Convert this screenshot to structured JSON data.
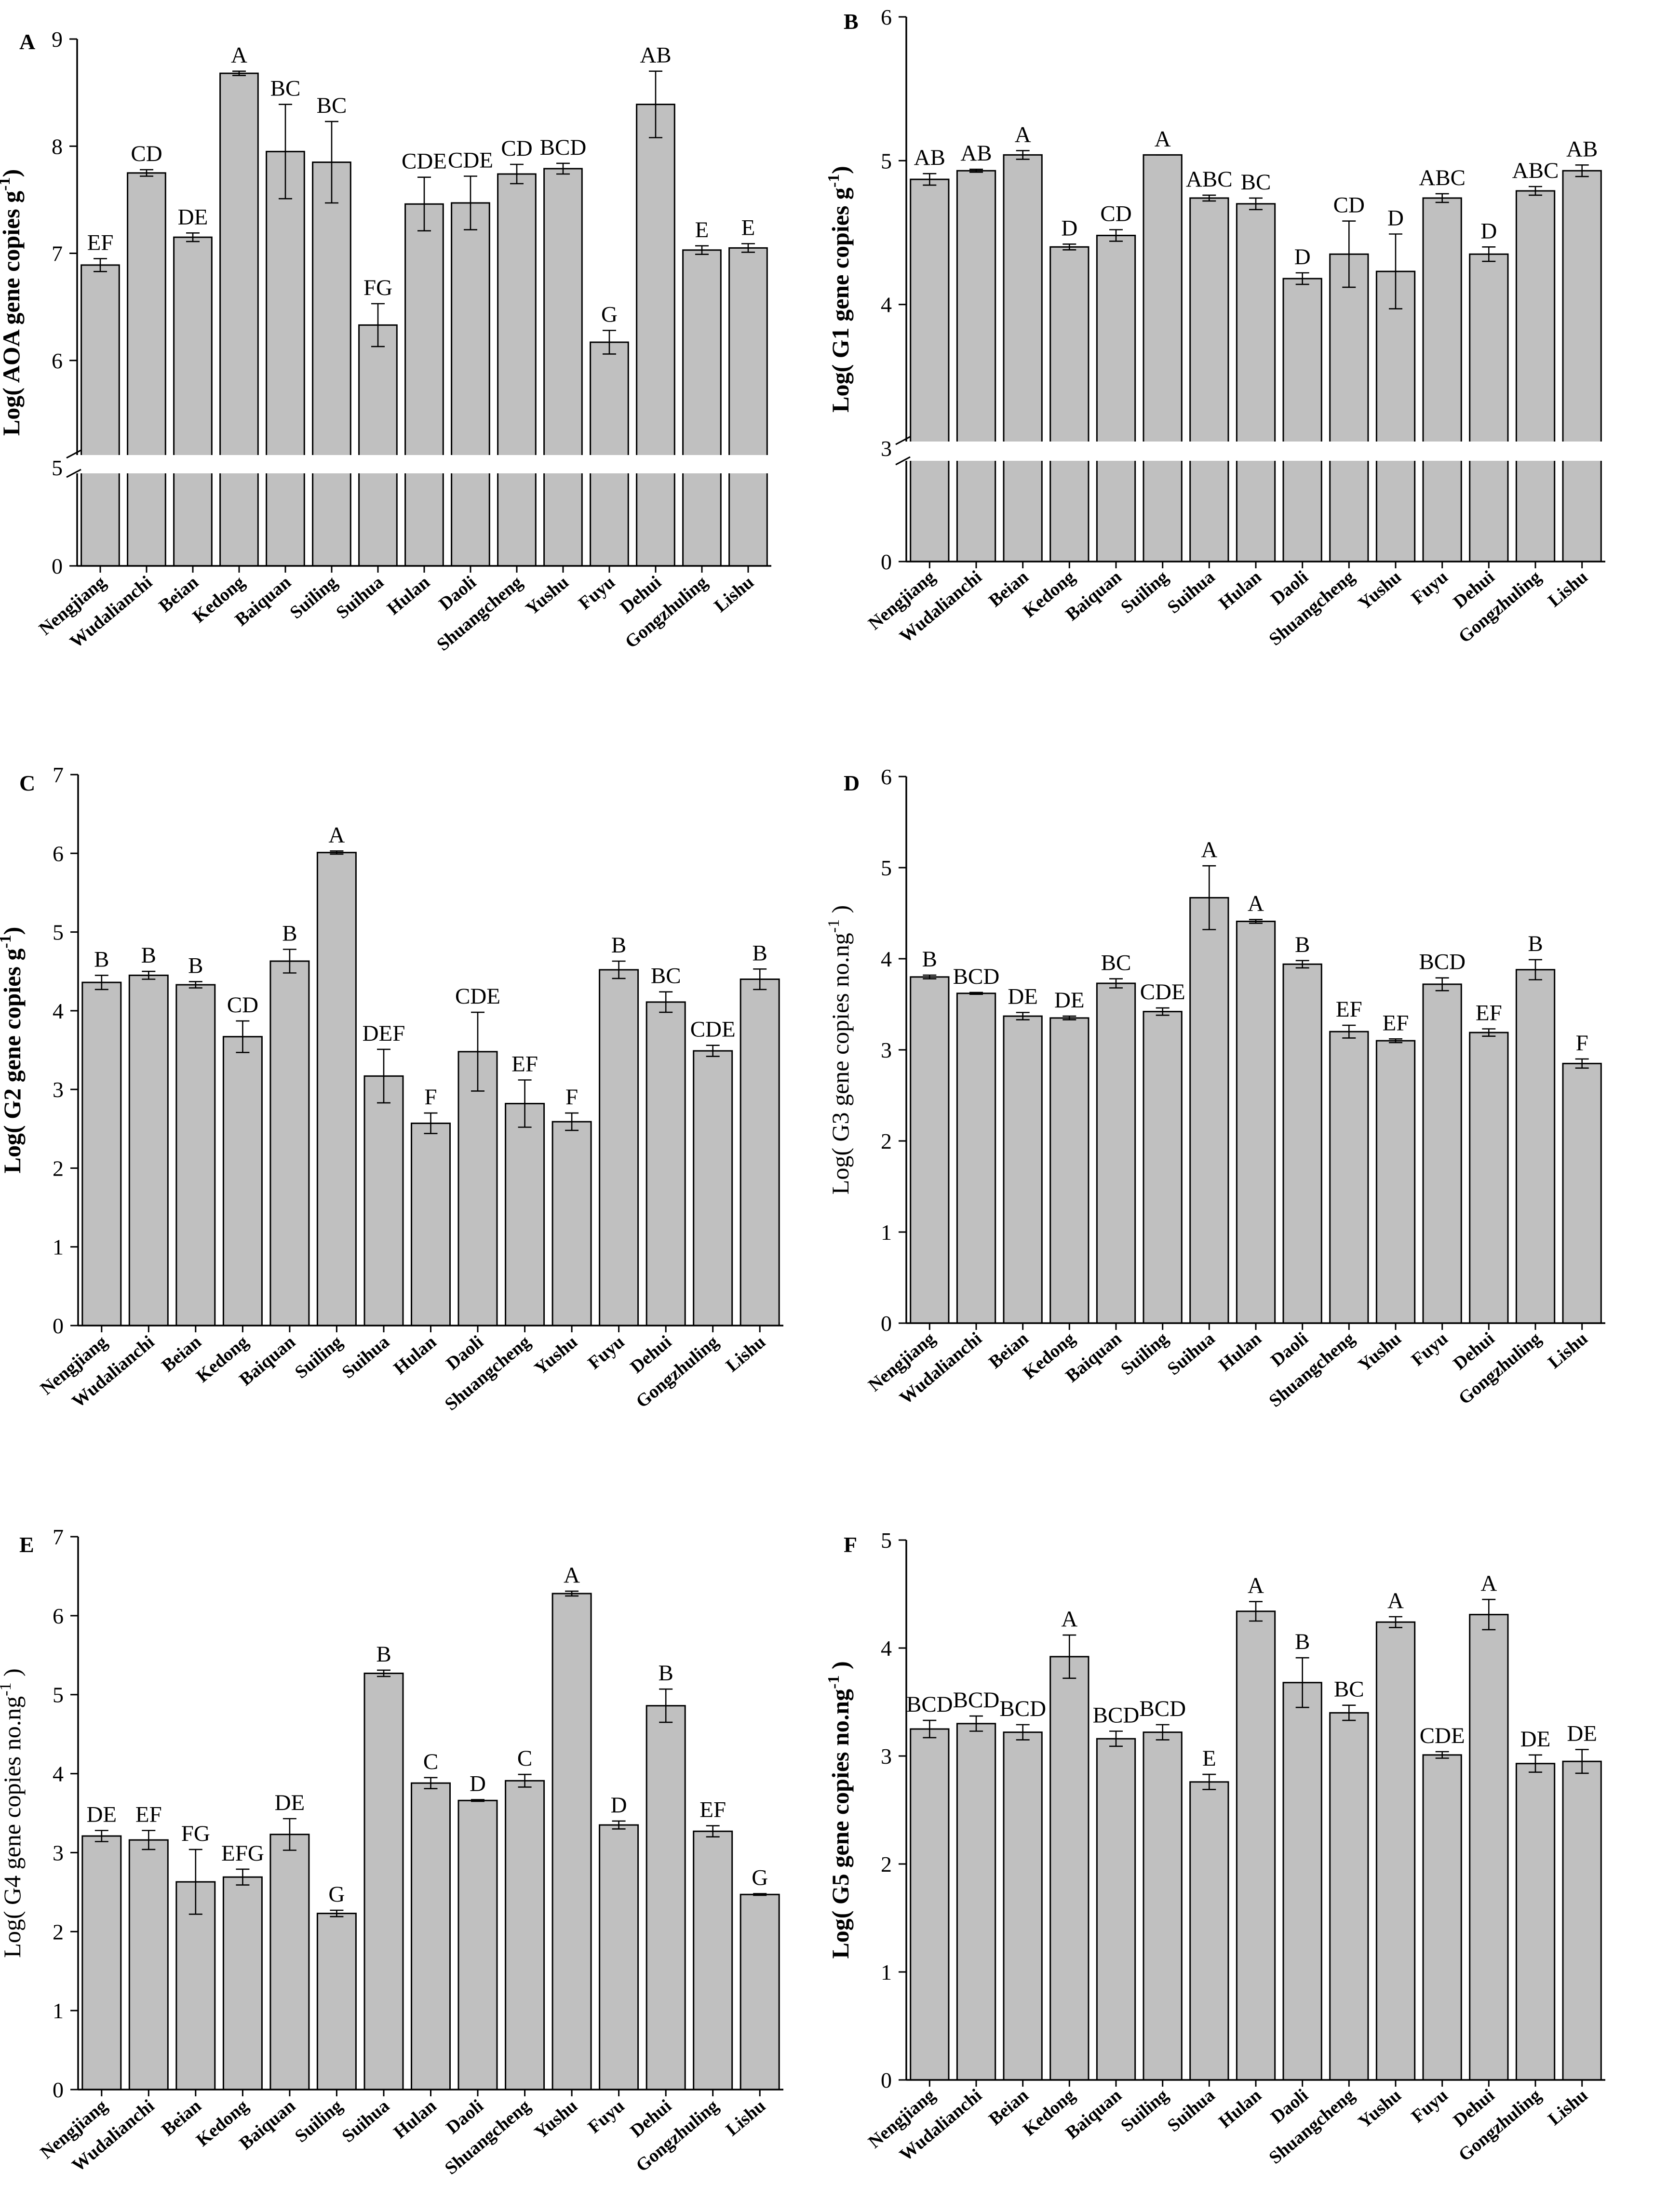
{
  "categories": [
    "Nengjiang",
    "Wudalianchi",
    "Beian",
    "Kedong",
    "Baiquan",
    "Suiling",
    "Suihua",
    "Hulan",
    "Daoli",
    "Shuangcheng",
    "Yushu",
    "Fuyu",
    "Dehui",
    "Gongzhuling",
    "Lishu"
  ],
  "colors": {
    "bar_fill": "#c0c0c0",
    "bar_stroke": "#000000"
  },
  "chart_data": [
    {
      "panel": "A",
      "type": "bar",
      "ylabel": "Log( AOA gene copies g-1)",
      "ylabel_main": "Log( AOA gene copies g",
      "ylabel_sup": "-1",
      "ylabel_end": ")",
      "ylabel_bold": true,
      "yticks": [
        0,
        5,
        6,
        7,
        8,
        9
      ],
      "axis_break": true,
      "values": [
        6.89,
        7.75,
        7.15,
        8.68,
        7.95,
        7.85,
        6.33,
        7.46,
        7.47,
        7.74,
        7.79,
        6.17,
        8.39,
        7.03,
        7.05
      ],
      "errors": [
        0.06,
        0.03,
        0.04,
        0.02,
        0.44,
        0.38,
        0.2,
        0.25,
        0.25,
        0.09,
        0.05,
        0.11,
        0.31,
        0.04,
        0.04
      ],
      "letters": [
        "EF",
        "CD",
        "DE",
        "A",
        "BC",
        "BC",
        "FG",
        "CDE",
        "CDE",
        "CD",
        "BCD",
        "G",
        "AB",
        "E",
        "E"
      ]
    },
    {
      "panel": "B",
      "type": "bar",
      "ylabel": "Log( G1 gene copies g-1)",
      "ylabel_main": "Log( G1 gene copies g",
      "ylabel_sup": "-1",
      "ylabel_end": ")",
      "ylabel_bold": true,
      "yticks": [
        0,
        3,
        4,
        5,
        6
      ],
      "axis_break": true,
      "values": [
        4.87,
        4.93,
        5.04,
        4.4,
        4.48,
        5.04,
        4.74,
        4.7,
        4.18,
        4.35,
        4.23,
        4.74,
        4.35,
        4.79,
        4.93
      ],
      "errors": [
        0.04,
        0.01,
        0.03,
        0.02,
        0.04,
        0.0,
        0.02,
        0.04,
        0.04,
        0.23,
        0.26,
        0.03,
        0.05,
        0.03,
        0.04
      ],
      "letters": [
        "AB",
        "AB",
        "A",
        "D",
        "CD",
        "A",
        "ABC",
        "BC",
        "D",
        "CD",
        "D",
        "ABC",
        "D",
        "ABC",
        "AB"
      ]
    },
    {
      "panel": "C",
      "type": "bar",
      "ylabel": "Log( G2 gene copies g-1)",
      "ylabel_main": "Log( G2 gene copies g",
      "ylabel_sup": "-1",
      "ylabel_end": ")",
      "ylabel_bold": true,
      "yticks": [
        0,
        1,
        2,
        3,
        4,
        5,
        6,
        7
      ],
      "axis_break": false,
      "values": [
        4.36,
        4.45,
        4.33,
        3.67,
        4.63,
        6.01,
        3.17,
        2.57,
        3.48,
        2.82,
        2.59,
        4.52,
        4.11,
        3.49,
        4.4
      ],
      "errors": [
        0.09,
        0.05,
        0.04,
        0.2,
        0.15,
        0.02,
        0.34,
        0.13,
        0.5,
        0.3,
        0.11,
        0.11,
        0.13,
        0.07,
        0.13
      ],
      "letters": [
        "B",
        "B",
        "B",
        "CD",
        "B",
        "A",
        "DEF",
        "F",
        "CDE",
        "EF",
        "F",
        "B",
        "BC",
        "CDE",
        "B"
      ]
    },
    {
      "panel": "D",
      "type": "bar",
      "ylabel": "Log( G3 gene copies no.ng-1 )",
      "ylabel_main": "Log( G3 gene copies no.ng",
      "ylabel_sup": "-1",
      "ylabel_end": " )",
      "ylabel_bold": false,
      "yticks": [
        0,
        1,
        2,
        3,
        4,
        5,
        6
      ],
      "axis_break": false,
      "values": [
        3.8,
        3.62,
        3.37,
        3.35,
        3.73,
        3.42,
        4.67,
        4.41,
        3.94,
        3.2,
        3.1,
        3.72,
        3.19,
        3.88,
        2.85
      ],
      "errors": [
        0.02,
        0.01,
        0.04,
        0.02,
        0.05,
        0.04,
        0.35,
        0.02,
        0.04,
        0.07,
        0.02,
        0.07,
        0.04,
        0.11,
        0.05
      ],
      "letters": [
        "B",
        "BCD",
        "DE",
        "DE",
        "BC",
        "CDE",
        "A",
        "A",
        "B",
        "EF",
        "EF",
        "BCD",
        "EF",
        "B",
        "F"
      ]
    },
    {
      "panel": "E",
      "type": "bar",
      "ylabel": "Log( G4 gene copies no.ng-1 )",
      "ylabel_main": "Log( G4 gene copies no.ng",
      "ylabel_sup": "-1",
      "ylabel_end": " )",
      "ylabel_bold": false,
      "yticks": [
        0,
        1,
        2,
        3,
        4,
        5,
        6,
        7
      ],
      "axis_break": false,
      "values": [
        3.21,
        3.16,
        2.63,
        2.69,
        3.23,
        2.23,
        5.27,
        3.88,
        3.66,
        3.91,
        6.28,
        3.35,
        4.86,
        3.27,
        2.47
      ],
      "errors": [
        0.07,
        0.12,
        0.41,
        0.1,
        0.2,
        0.04,
        0.04,
        0.07,
        0.01,
        0.08,
        0.03,
        0.05,
        0.21,
        0.07,
        0.01
      ],
      "letters": [
        "DE",
        "EF",
        "FG",
        "EFG",
        "DE",
        "G",
        "B",
        "C",
        "D",
        "C",
        "A",
        "D",
        "B",
        "EF",
        "G"
      ]
    },
    {
      "panel": "F",
      "type": "bar",
      "ylabel": "Log( G5 gene copies no.ng-1 )",
      "ylabel_main": "Log( G5 gene copies no.ng",
      "ylabel_sup": "-1",
      "ylabel_end": " )",
      "ylabel_bold": true,
      "yticks": [
        0,
        1,
        2,
        3,
        4,
        5
      ],
      "axis_break": false,
      "values": [
        3.25,
        3.3,
        3.22,
        3.92,
        3.16,
        3.22,
        2.76,
        4.34,
        3.68,
        3.4,
        4.24,
        3.01,
        4.31,
        2.93,
        2.95
      ],
      "errors": [
        0.08,
        0.07,
        0.07,
        0.2,
        0.07,
        0.07,
        0.07,
        0.09,
        0.23,
        0.07,
        0.05,
        0.03,
        0.14,
        0.08,
        0.11
      ],
      "letters": [
        "BCD",
        "BCD",
        "BCD",
        "A",
        "BCD",
        "BCD",
        "E",
        "A",
        "B",
        "BC",
        "A",
        "CDE",
        "A",
        "DE",
        "DE"
      ]
    }
  ]
}
